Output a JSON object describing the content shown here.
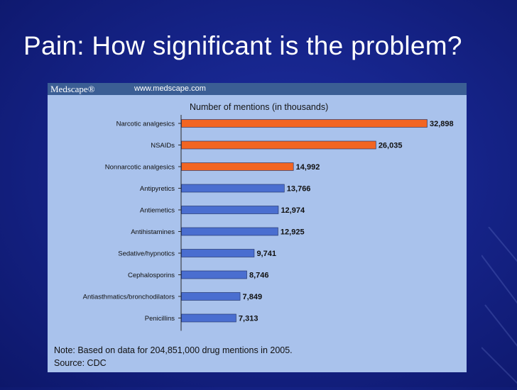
{
  "slide": {
    "title": "Pain: How significant is the problem?"
  },
  "figure": {
    "brand": "Medscape®",
    "url": "www.medscape.com",
    "note": "Note: Based on data for 204,851,000 drug mentions in 2005.",
    "source": "Source: CDC"
  },
  "colors": {
    "highlight_bar": "#f26522",
    "standard_bar": "#4a6ed0",
    "panel": "#a9c2ec",
    "brand_bar": "#3b5e94"
  },
  "chart_data": {
    "type": "bar",
    "orientation": "horizontal",
    "title": "Number of mentions (in thousands)",
    "categories": [
      "Narcotic analgesics",
      "NSAIDs",
      "Nonnarcotic analgesics",
      "Antipyretics",
      "Antiemetics",
      "Antihistamines",
      "Sedative/hypnotics",
      "Cephalosporins",
      "Antiasthmatics/bronchodilators",
      "Penicillins"
    ],
    "values": [
      32898,
      26035,
      14992,
      13766,
      12974,
      12925,
      9741,
      8746,
      7849,
      7313
    ],
    "value_labels": [
      "32,898",
      "26,035",
      "14,992",
      "13,766",
      "12,974",
      "12,925",
      "9,741",
      "8,746",
      "7,849",
      "7,313"
    ],
    "highlighted": [
      true,
      true,
      true,
      false,
      false,
      false,
      false,
      false,
      false,
      false
    ],
    "xlabel": "",
    "ylabel": "",
    "xlim": [
      0,
      32898
    ],
    "grid": false
  }
}
